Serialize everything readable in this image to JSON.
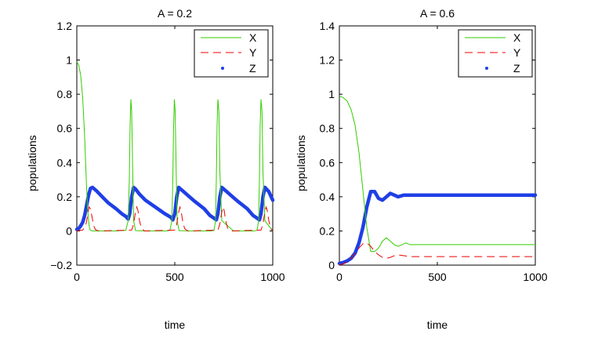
{
  "chart_data": [
    {
      "type": "line",
      "title": "A = 0.2",
      "xlabel": "time",
      "ylabel": "populations",
      "xlim": [
        0,
        1000
      ],
      "ylim": [
        -0.2,
        1.2
      ],
      "xticks": [
        0,
        500,
        1000
      ],
      "yticks": [
        -0.2,
        0,
        0.2,
        0.4,
        0.6,
        0.8,
        1,
        1.2
      ],
      "xtick_labels": [
        "0",
        "500",
        "1000"
      ],
      "ytick_labels": [
        "−0.2",
        "0",
        "0.2",
        "0.4",
        "0.6",
        "0.8",
        "1",
        "1.2"
      ],
      "legend_position": "top-right",
      "series": [
        {
          "name": "X",
          "color": "#33cc00",
          "style": "solid",
          "x": [
            0,
            10,
            20,
            30,
            40,
            50,
            55,
            60,
            63,
            66,
            70,
            75,
            80,
            120,
            200,
            250,
            262,
            268,
            272,
            276,
            280,
            285,
            290,
            300,
            350,
            460,
            475,
            485,
            490,
            494,
            498,
            502,
            507,
            512,
            522,
            580,
            685,
            700,
            708,
            712,
            716,
            720,
            725,
            730,
            740,
            800,
            905,
            920,
            928,
            932,
            936,
            940,
            945,
            950,
            960,
            1000
          ],
          "values": [
            0.99,
            0.97,
            0.91,
            0.78,
            0.55,
            0.25,
            0.13,
            0.06,
            0.03,
            0.01,
            0.004,
            0.002,
            0,
            0,
            0,
            0.004,
            0.06,
            0.3,
            0.62,
            0.77,
            0.7,
            0.35,
            0.06,
            0.002,
            0,
            0,
            0.004,
            0.06,
            0.3,
            0.62,
            0.77,
            0.7,
            0.35,
            0.06,
            0.002,
            0,
            0,
            0.004,
            0.06,
            0.3,
            0.62,
            0.77,
            0.7,
            0.35,
            0.06,
            0,
            0,
            0.004,
            0.06,
            0.3,
            0.62,
            0.77,
            0.7,
            0.35,
            0.06,
            0
          ]
        },
        {
          "name": "Y",
          "color": "#ee0000",
          "style": "dashed",
          "x": [
            0,
            30,
            45,
            55,
            62,
            70,
            78,
            86,
            95,
            105,
            120,
            280,
            290,
            298,
            306,
            312,
            320,
            330,
            345,
            500,
            510,
            518,
            526,
            532,
            540,
            550,
            565,
            720,
            730,
            738,
            746,
            752,
            760,
            770,
            785,
            940,
            950,
            958,
            966,
            972,
            980,
            990,
            1000
          ],
          "values": [
            0,
            0.005,
            0.03,
            0.09,
            0.14,
            0.13,
            0.08,
            0.03,
            0.008,
            0.002,
            0,
            0.005,
            0.04,
            0.1,
            0.14,
            0.12,
            0.06,
            0.015,
            0,
            0.005,
            0.04,
            0.1,
            0.14,
            0.12,
            0.06,
            0.015,
            0,
            0.005,
            0.04,
            0.1,
            0.14,
            0.12,
            0.06,
            0.015,
            0,
            0.005,
            0.04,
            0.1,
            0.14,
            0.12,
            0.06,
            0.015,
            0
          ]
        },
        {
          "name": "Z",
          "color": "#1f3fe6",
          "style": "dotted",
          "x": [
            0,
            10,
            20,
            30,
            40,
            50,
            60,
            70,
            80,
            100,
            130,
            160,
            200,
            230,
            250,
            262,
            270,
            280,
            290,
            300,
            320,
            350,
            400,
            450,
            480,
            490,
            500,
            510,
            520,
            540,
            570,
            600,
            650,
            680,
            700,
            712,
            720,
            730,
            740,
            760,
            790,
            820,
            870,
            900,
            920,
            932,
            940,
            950,
            960,
            980,
            1000
          ],
          "values": [
            0.01,
            0.015,
            0.03,
            0.05,
            0.09,
            0.15,
            0.21,
            0.25,
            0.255,
            0.235,
            0.2,
            0.165,
            0.13,
            0.1,
            0.085,
            0.07,
            0.1,
            0.2,
            0.255,
            0.245,
            0.215,
            0.18,
            0.14,
            0.1,
            0.08,
            0.065,
            0.1,
            0.2,
            0.255,
            0.235,
            0.205,
            0.175,
            0.13,
            0.09,
            0.075,
            0.065,
            0.1,
            0.2,
            0.255,
            0.235,
            0.205,
            0.175,
            0.13,
            0.09,
            0.075,
            0.065,
            0.1,
            0.2,
            0.255,
            0.23,
            0.18
          ]
        }
      ]
    },
    {
      "type": "line",
      "title": "A = 0.6",
      "xlabel": "time",
      "ylabel": "populations",
      "xlim": [
        0,
        1000
      ],
      "ylim": [
        0,
        1.4
      ],
      "xticks": [
        0,
        500,
        1000
      ],
      "yticks": [
        0,
        0.2,
        0.4,
        0.6,
        0.8,
        1,
        1.2,
        1.4
      ],
      "xtick_labels": [
        "0",
        "500",
        "1000"
      ],
      "ytick_labels": [
        "0",
        "0.2",
        "0.4",
        "0.6",
        "0.8",
        "1",
        "1.2",
        "1.4"
      ],
      "legend_position": "top-right",
      "series": [
        {
          "name": "X",
          "color": "#33cc00",
          "style": "solid",
          "x": [
            0,
            20,
            40,
            60,
            80,
            100,
            120,
            140,
            160,
            180,
            200,
            220,
            240,
            260,
            280,
            300,
            320,
            340,
            360,
            380,
            400,
            450,
            500,
            600,
            700,
            800,
            900,
            1000
          ],
          "values": [
            0.99,
            0.98,
            0.96,
            0.91,
            0.82,
            0.66,
            0.44,
            0.22,
            0.08,
            0.08,
            0.1,
            0.14,
            0.16,
            0.14,
            0.12,
            0.11,
            0.12,
            0.13,
            0.12,
            0.12,
            0.12,
            0.12,
            0.12,
            0.12,
            0.12,
            0.12,
            0.12,
            0.12
          ]
        },
        {
          "name": "Y",
          "color": "#ee0000",
          "style": "dashed",
          "x": [
            0,
            20,
            40,
            60,
            80,
            100,
            120,
            140,
            160,
            180,
            200,
            220,
            240,
            260,
            280,
            300,
            330,
            360,
            400,
            500,
            600,
            700,
            800,
            900,
            1000
          ],
          "values": [
            0.002,
            0.008,
            0.02,
            0.04,
            0.07,
            0.1,
            0.125,
            0.13,
            0.11,
            0.08,
            0.06,
            0.045,
            0.04,
            0.045,
            0.055,
            0.06,
            0.055,
            0.05,
            0.05,
            0.05,
            0.05,
            0.05,
            0.05,
            0.05,
            0.05
          ]
        },
        {
          "name": "Z",
          "color": "#1f3fe6",
          "style": "dotted",
          "x": [
            0,
            20,
            40,
            60,
            80,
            100,
            120,
            140,
            160,
            180,
            200,
            220,
            240,
            260,
            280,
            300,
            330,
            360,
            400,
            500,
            600,
            700,
            800,
            900,
            1000
          ],
          "values": [
            0.01,
            0.015,
            0.025,
            0.04,
            0.07,
            0.13,
            0.22,
            0.34,
            0.43,
            0.43,
            0.39,
            0.38,
            0.4,
            0.42,
            0.41,
            0.4,
            0.41,
            0.41,
            0.41,
            0.41,
            0.41,
            0.41,
            0.41,
            0.41,
            0.41
          ]
        }
      ]
    }
  ]
}
